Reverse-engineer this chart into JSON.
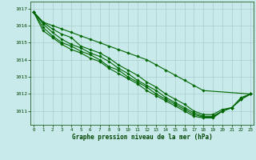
{
  "title": "Graphe pression niveau de la mer (hPa)",
  "bg_color": "#c8eaea",
  "grid_color": "#aacccc",
  "line_color": "#006600",
  "marker_color": "#006600",
  "tick_label_color": "#004400",
  "xlim": [
    -0.3,
    23.3
  ],
  "ylim": [
    1010.2,
    1017.4
  ],
  "yticks": [
    1011,
    1012,
    1013,
    1014,
    1015,
    1016,
    1017
  ],
  "xticks": [
    0,
    1,
    2,
    3,
    4,
    5,
    6,
    7,
    8,
    9,
    10,
    11,
    12,
    13,
    14,
    15,
    16,
    17,
    18,
    19,
    20,
    21,
    22,
    23
  ],
  "series": [
    [
      1016.8,
      1016.2,
      1015.8,
      1015.5,
      1015.3,
      1014.8,
      1014.6,
      1014.4,
      1014.1,
      1013.7,
      1013.4,
      1013.1,
      1012.7,
      1012.4,
      1012.0,
      1011.7,
      1011.4,
      1011.0,
      1010.8,
      1010.8,
      1011.1,
      1011.2,
      1011.8,
      1012.0
    ],
    [
      1016.8,
      1016.1,
      1015.6,
      1015.2,
      1014.9,
      1014.7,
      1014.4,
      1014.2,
      1013.9,
      1013.5,
      1013.2,
      1012.8,
      1012.5,
      1012.2,
      1011.8,
      1011.5,
      1011.2,
      1010.9,
      1010.7,
      1010.7,
      1011.0,
      1011.2,
      1011.7,
      1012.0
    ],
    [
      1016.8,
      1015.9,
      1015.4,
      1015.0,
      1014.8,
      1014.5,
      1014.3,
      1014.0,
      1013.6,
      1013.4,
      1013.0,
      1012.7,
      1012.4,
      1012.0,
      1011.7,
      1011.4,
      1011.1,
      1010.8,
      1010.65,
      1010.65,
      1011.0,
      1011.2,
      1011.7,
      1012.0
    ],
    [
      1016.8,
      1015.7,
      1015.3,
      1014.9,
      1014.6,
      1014.4,
      1014.1,
      1013.9,
      1013.5,
      1013.2,
      1012.9,
      1012.6,
      1012.2,
      1011.9,
      1011.6,
      1011.3,
      1011.0,
      1010.7,
      1010.6,
      1010.6,
      1011.0,
      1011.2,
      1011.7,
      1012.0
    ]
  ],
  "series_top": [
    1016.8,
    1016.2,
    1016.0,
    1015.8,
    1015.6,
    1015.4,
    1015.2,
    1015.0,
    1014.8,
    1014.6,
    1014.4,
    1014.2,
    1014.0,
    1013.7,
    1013.4,
    1013.1,
    1012.8,
    1012.5,
    1012.2,
    null,
    null,
    null,
    null,
    1012.0
  ]
}
